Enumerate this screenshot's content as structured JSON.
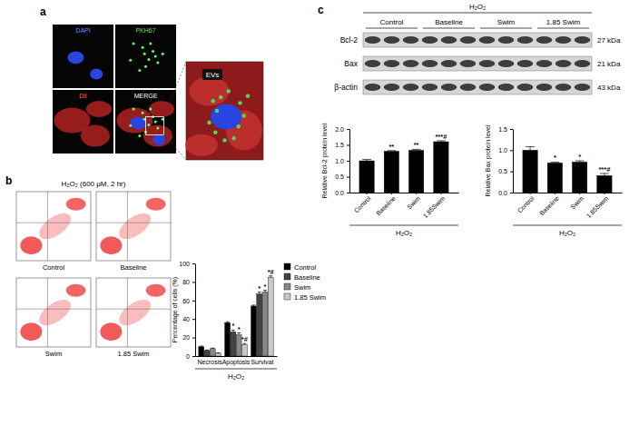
{
  "panels": {
    "a": {
      "label": "a",
      "channels": [
        "DAPI",
        "PKH67",
        "DiI",
        "MERGE"
      ],
      "inset_label": "EVs"
    },
    "b": {
      "label": "b",
      "condition": "H₂O₂ (600 μM, 2 hr)",
      "plots": [
        "Control",
        "Baseline",
        "Swim",
        "1.85 Swim"
      ]
    },
    "c": {
      "label": "c",
      "condition": "H₂O₂",
      "groups": [
        "Control",
        "Baseline",
        "Swim",
        "1.85 Swim"
      ],
      "rows": [
        {
          "protein": "Bcl-2",
          "size": "27 kDa"
        },
        {
          "protein": "Bax",
          "size": "21 kDa"
        },
        {
          "protein": "β-actin",
          "size": "43 kDa"
        }
      ]
    }
  },
  "chart_data": [
    {
      "type": "bar",
      "categories": [
        "Necrosis",
        "Apoptosis",
        "Survival"
      ],
      "series": [
        {
          "name": "Control",
          "color": "#000000",
          "values": [
            10,
            36,
            54
          ],
          "errors": [
            0.8,
            1,
            1
          ]
        },
        {
          "name": "Baseline",
          "color": "#444444",
          "values": [
            6,
            26,
            67
          ],
          "errors": [
            0.5,
            2,
            2
          ],
          "annotations": [
            null,
            "*",
            "*"
          ]
        },
        {
          "name": "Swim",
          "color": "#888888",
          "values": [
            8,
            23,
            69
          ],
          "errors": [
            0.6,
            2,
            2
          ],
          "annotations": [
            null,
            "*",
            "*"
          ]
        },
        {
          "name": "1.85 Swim",
          "color": "#c8c8c8",
          "values": [
            3,
            12,
            85
          ],
          "errors": [
            0.4,
            1.5,
            1.5
          ],
          "annotations": [
            null,
            "*#",
            "*#"
          ]
        }
      ],
      "x_label": "H₂O₂",
      "y_label": "Percentage of cells (%)",
      "ylim": [
        0,
        100
      ],
      "yticks": [
        0,
        20,
        40,
        60,
        80,
        100
      ],
      "legend": "right"
    },
    {
      "type": "bar",
      "categories": [
        "Control",
        "Baseline",
        "Swim",
        "1.85Swim"
      ],
      "values": [
        1.0,
        1.3,
        1.33,
        1.6
      ],
      "errors": [
        0.04,
        0.02,
        0.03,
        0.03
      ],
      "annotations": [
        null,
        "**",
        "**",
        "***#"
      ],
      "color": "#000000",
      "x_label": "H₂O₂",
      "y_label": "Relative Bcl-2 protein level",
      "ylim": [
        0,
        2
      ],
      "yticks": [
        {
          "value": 0,
          "label": "0.0"
        },
        {
          "value": 0.5,
          "label": "0.5"
        },
        {
          "value": 1,
          "label": "1.0"
        },
        {
          "value": 1.5,
          "label": "1.5"
        },
        {
          "value": 2,
          "label": "2.0"
        }
      ]
    },
    {
      "type": "bar",
      "categories": [
        "Control",
        "Baseline",
        "Swim",
        "1.85Swim"
      ],
      "values": [
        1.0,
        0.7,
        0.72,
        0.4
      ],
      "errors": [
        0.08,
        0.02,
        0.03,
        0.05
      ],
      "annotations": [
        null,
        "*",
        "*",
        "***#"
      ],
      "color": "#000000",
      "x_label": "H₂O₂",
      "y_label": "Relative Bax protein level",
      "ylim": [
        0,
        1.5
      ],
      "yticks": [
        {
          "value": 0,
          "label": "0.0"
        },
        {
          "value": 0.5,
          "label": "0.5"
        },
        {
          "value": 1,
          "label": "1.0"
        },
        {
          "value": 1.5,
          "label": "1.5"
        }
      ]
    }
  ]
}
